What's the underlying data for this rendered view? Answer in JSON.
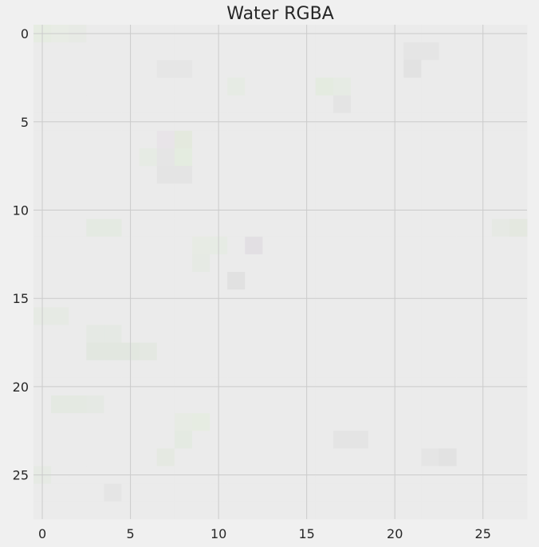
{
  "chart_data": {
    "type": "heatmap",
    "title": "Water RGBA",
    "xlabel": "",
    "ylabel": "",
    "x_ticks": [
      0,
      5,
      10,
      15,
      20,
      25
    ],
    "y_ticks": [
      0,
      5,
      10,
      15,
      20,
      25
    ],
    "x_tick_labels": [
      "0",
      "5",
      "10",
      "15",
      "20",
      "25"
    ],
    "y_tick_labels": [
      "0",
      "5",
      "10",
      "15",
      "20",
      "25"
    ],
    "xlim": [
      -0.5,
      27.5
    ],
    "ylim": [
      27.5,
      -0.5
    ],
    "grid": true,
    "grid_color": "#cbcbcb",
    "background_color": "#f0f0f0",
    "image_shape": [
      28,
      28
    ],
    "base_color": "#ebebeb",
    "tinted_cells": [
      {
        "row": 0,
        "col": 0,
        "color": "#e6ece2"
      },
      {
        "row": 0,
        "col": 1,
        "color": "#e8ece5"
      },
      {
        "row": 0,
        "col": 2,
        "color": "#e7eae5"
      },
      {
        "row": 1,
        "col": 21,
        "color": "#e5e5e5"
      },
      {
        "row": 1,
        "col": 22,
        "color": "#e5e5e5"
      },
      {
        "row": 2,
        "col": 21,
        "color": "#e2e2e2"
      },
      {
        "row": 2,
        "col": 7,
        "color": "#e6e6e6"
      },
      {
        "row": 2,
        "col": 8,
        "color": "#e6e6e6"
      },
      {
        "row": 3,
        "col": 11,
        "color": "#e6ebe4"
      },
      {
        "row": 3,
        "col": 16,
        "color": "#e4ebe0"
      },
      {
        "row": 3,
        "col": 17,
        "color": "#e6ebe4"
      },
      {
        "row": 4,
        "col": 17,
        "color": "#e4e4e4"
      },
      {
        "row": 6,
        "col": 7,
        "color": "#e8e4e8"
      },
      {
        "row": 6,
        "col": 8,
        "color": "#e4e9de"
      },
      {
        "row": 7,
        "col": 7,
        "color": "#e5e5e5"
      },
      {
        "row": 7,
        "col": 8,
        "color": "#e4ece0"
      },
      {
        "row": 7,
        "col": 6,
        "color": "#e6ebe4"
      },
      {
        "row": 8,
        "col": 7,
        "color": "#e4e4e4"
      },
      {
        "row": 8,
        "col": 8,
        "color": "#e4e4e4"
      },
      {
        "row": 11,
        "col": 3,
        "color": "#e4eae2"
      },
      {
        "row": 11,
        "col": 4,
        "color": "#e4eae2"
      },
      {
        "row": 11,
        "col": 26,
        "color": "#e6e9e4"
      },
      {
        "row": 11,
        "col": 27,
        "color": "#e4e8e0"
      },
      {
        "row": 12,
        "col": 12,
        "color": "#e2dfe3"
      },
      {
        "row": 12,
        "col": 9,
        "color": "#e7ebe4"
      },
      {
        "row": 12,
        "col": 10,
        "color": "#e6ebe4"
      },
      {
        "row": 13,
        "col": 9,
        "color": "#e6eae4"
      },
      {
        "row": 14,
        "col": 11,
        "color": "#e1e1e1"
      },
      {
        "row": 16,
        "col": 0,
        "color": "#e6eae4"
      },
      {
        "row": 16,
        "col": 1,
        "color": "#e6eae4"
      },
      {
        "row": 17,
        "col": 3,
        "color": "#e5e9e4"
      },
      {
        "row": 17,
        "col": 4,
        "color": "#e5e9e4"
      },
      {
        "row": 18,
        "col": 3,
        "color": "#e2e7e0"
      },
      {
        "row": 18,
        "col": 4,
        "color": "#e2e7e0"
      },
      {
        "row": 18,
        "col": 5,
        "color": "#e2e7e0"
      },
      {
        "row": 18,
        "col": 6,
        "color": "#e4e8e2"
      },
      {
        "row": 21,
        "col": 1,
        "color": "#e4e9e2"
      },
      {
        "row": 21,
        "col": 2,
        "color": "#e4e9e2"
      },
      {
        "row": 21,
        "col": 3,
        "color": "#e5e9e4"
      },
      {
        "row": 22,
        "col": 8,
        "color": "#e7ebe4"
      },
      {
        "row": 22,
        "col": 9,
        "color": "#e6ece2"
      },
      {
        "row": 23,
        "col": 8,
        "color": "#e4eae2"
      },
      {
        "row": 23,
        "col": 17,
        "color": "#e4e4e4"
      },
      {
        "row": 23,
        "col": 18,
        "color": "#e4e4e4"
      },
      {
        "row": 24,
        "col": 23,
        "color": "#e2e2e2"
      },
      {
        "row": 24,
        "col": 22,
        "color": "#e5e5e5"
      },
      {
        "row": 24,
        "col": 7,
        "color": "#e5e9e2"
      },
      {
        "row": 25,
        "col": 0,
        "color": "#e6eae4"
      },
      {
        "row": 26,
        "col": 4,
        "color": "#e5e5e5"
      }
    ]
  }
}
